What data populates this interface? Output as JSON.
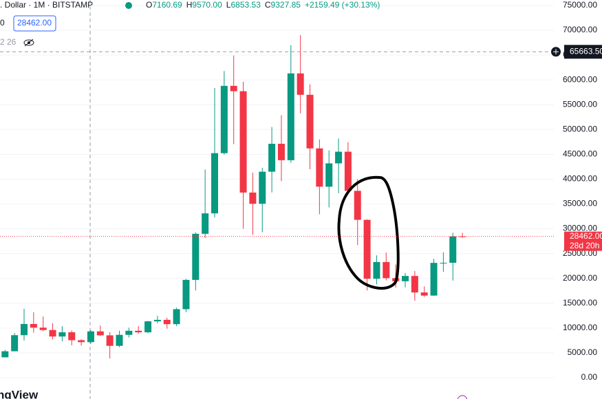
{
  "header": {
    "symbol": ". Dollar · 1M · BITSTAMP",
    "ohlc": [
      {
        "label": "O",
        "value": "7160.69"
      },
      {
        "label": "H",
        "value": "9570.00"
      },
      {
        "label": "L",
        "value": "6853.53"
      },
      {
        "label": "C",
        "value": "9327.85"
      }
    ],
    "change": "+2159.49 (+30.13%)",
    "indicator_prefix": "0",
    "indicator_value": "28462.00",
    "indicator_line": "2 26",
    "logo": "ngView"
  },
  "chart_data": {
    "type": "candlestick",
    "open": [
      4100,
      5320,
      8560,
      10820,
      10080,
      9600,
      8290,
      9150,
      7550,
      7160.69,
      9327,
      8530,
      6410,
      8630,
      9450,
      9140,
      11350,
      11650,
      10780,
      13800,
      19700,
      28990,
      33110,
      45240,
      58800,
      57720,
      37300,
      35040,
      41500,
      47130,
      43820,
      61310,
      57000,
      46200,
      38480,
      43180,
      45530,
      37640,
      31800,
      19930,
      23300,
      20050,
      19430,
      20490,
      17170,
      16540,
      23130,
      23150,
      28470
    ],
    "high": [
      5600,
      9000,
      13880,
      13200,
      12330,
      10950,
      10370,
      9510,
      7750,
      9570,
      10500,
      9190,
      9470,
      10080,
      10380,
      11430,
      12470,
      12070,
      14100,
      19900,
      29300,
      41950,
      58350,
      61790,
      64900,
      59600,
      41330,
      42300,
      50500,
      52900,
      67000,
      69000,
      59100,
      47990,
      45800,
      48200,
      47450,
      40000,
      31900,
      24650,
      25200,
      22800,
      21090,
      21480,
      18400,
      23950,
      25250,
      29200,
      29200
    ],
    "low": [
      4080,
      5320,
      7490,
      9070,
      9330,
      7730,
      7300,
      6520,
      6430,
      6853.53,
      8450,
      3850,
      6150,
      8100,
      8840,
      8960,
      10960,
      9880,
      10380,
      13200,
      17570,
      28130,
      32300,
      44950,
      47040,
      30000,
      28800,
      29300,
      37330,
      39600,
      43300,
      53250,
      42000,
      32930,
      34300,
      37170,
      37580,
      26700,
      17570,
      18800,
      19600,
      18150,
      18200,
      15480,
      16260,
      16500,
      21350,
      19550,
      28200
    ],
    "close": [
      5320,
      8560,
      10820,
      10080,
      9600,
      8290,
      9150,
      7550,
      7160,
      9327.85,
      8530,
      6410,
      8630,
      9450,
      9140,
      11350,
      11650,
      10780,
      13800,
      19700,
      28990,
      33110,
      45240,
      58800,
      57720,
      37300,
      35040,
      41500,
      47130,
      43820,
      61310,
      57000,
      46200,
      38480,
      43180,
      45530,
      37640,
      31800,
      19930,
      23300,
      20050,
      19430,
      20490,
      17170,
      16540,
      23130,
      23150,
      28470,
      28462
    ],
    "up_color": "#089981",
    "down_color": "#f23645",
    "ylim": [
      -4300,
      76100
    ],
    "yticks": [
      {
        "value": 0,
        "label": "0.00"
      },
      {
        "value": 5000,
        "label": "5000.00"
      },
      {
        "value": 10000,
        "label": "10000.00"
      },
      {
        "value": 15000,
        "label": "15000.00"
      },
      {
        "value": 20000,
        "label": "20000.00"
      },
      {
        "value": 25000,
        "label": "25000.00"
      },
      {
        "value": 30000,
        "label": "30000.00"
      },
      {
        "value": 35000,
        "label": "35000.00"
      },
      {
        "value": 40000,
        "label": "40000.00"
      },
      {
        "value": 45000,
        "label": "45000.00"
      },
      {
        "value": 50000,
        "label": "50000.00"
      },
      {
        "value": 55000,
        "label": "55000.00"
      },
      {
        "value": 60000,
        "label": "60000.00"
      },
      {
        "value": 65000,
        "label": "65000.00"
      },
      {
        "value": 70000,
        "label": "70000.00"
      },
      {
        "value": 75000,
        "label": "75000.00"
      }
    ],
    "grid": true,
    "crosshair": {
      "value": 65663.5,
      "label": "65663.50"
    },
    "last_price": {
      "value": 28462,
      "label": "28462.00",
      "countdown": "28d 20h"
    }
  }
}
